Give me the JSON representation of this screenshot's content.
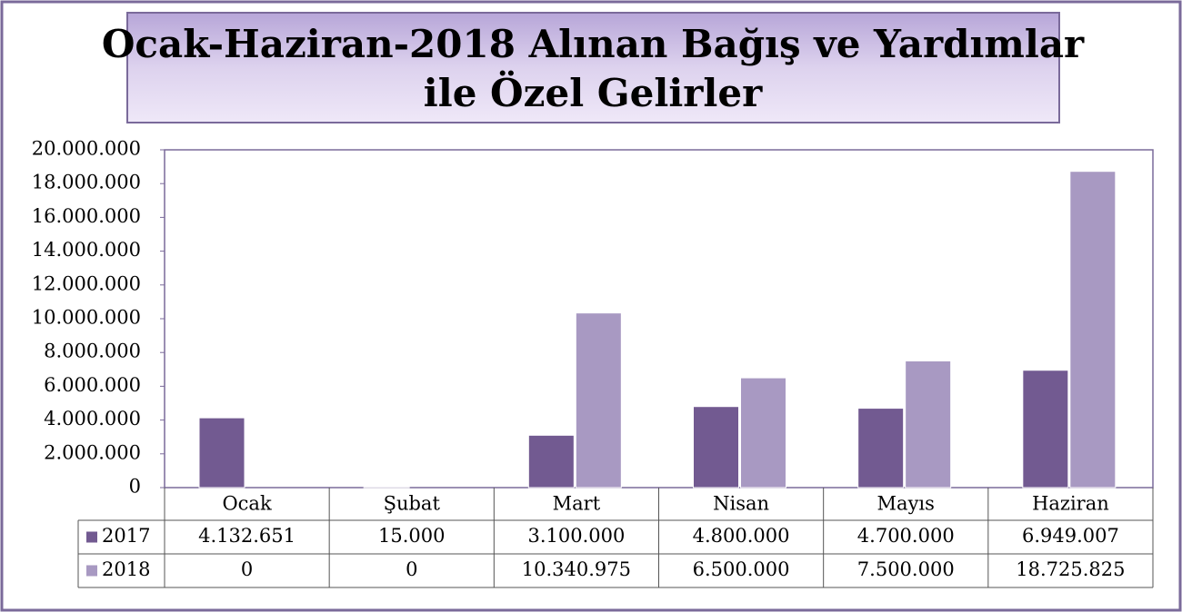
{
  "chart_data": {
    "type": "bar",
    "title": [
      "Ocak-Haziran-2018 Alınan Bağış ve Yardımlar",
      "ile Özel  Gelirler"
    ],
    "categories": [
      "Ocak",
      "Şubat",
      "Mart",
      "Nisan",
      "Mayıs",
      "Haziran"
    ],
    "series": [
      {
        "name": "2017",
        "color": "#725a91",
        "values": [
          4132651,
          15000,
          3100000,
          4800000,
          4700000,
          6949007
        ],
        "value_labels": [
          "4.132.651",
          "15.000",
          "3.100.000",
          "4.800.000",
          "4.700.000",
          "6.949.007"
        ]
      },
      {
        "name": "2018",
        "color": "#a899c2",
        "values": [
          0,
          0,
          10340975,
          6500000,
          7500000,
          18725825
        ],
        "value_labels": [
          "0",
          "0",
          "10.340.975",
          "6.500.000",
          "7.500.000",
          "18.725.825"
        ]
      }
    ],
    "ylim": [
      0,
      20000000
    ],
    "yticks": [
      0,
      {
        "value": 2000000,
        "label": "2.000.000"
      },
      {
        "value": 4000000,
        "label": "4.000.000"
      },
      {
        "value": 6000000,
        "label": "6.000.000"
      },
      {
        "value": 8000000,
        "label": "8.000.000"
      },
      {
        "value": 10000000,
        "label": "10.000.000"
      },
      {
        "value": 12000000,
        "label": "12.000.000"
      },
      {
        "value": 14000000,
        "label": "14.000.000"
      },
      {
        "value": 16000000,
        "label": "16.000.000"
      },
      {
        "value": 18000000,
        "label": "18.000.000"
      },
      {
        "value": 20000000,
        "label": "20.000.000"
      }
    ],
    "grid": false
  }
}
